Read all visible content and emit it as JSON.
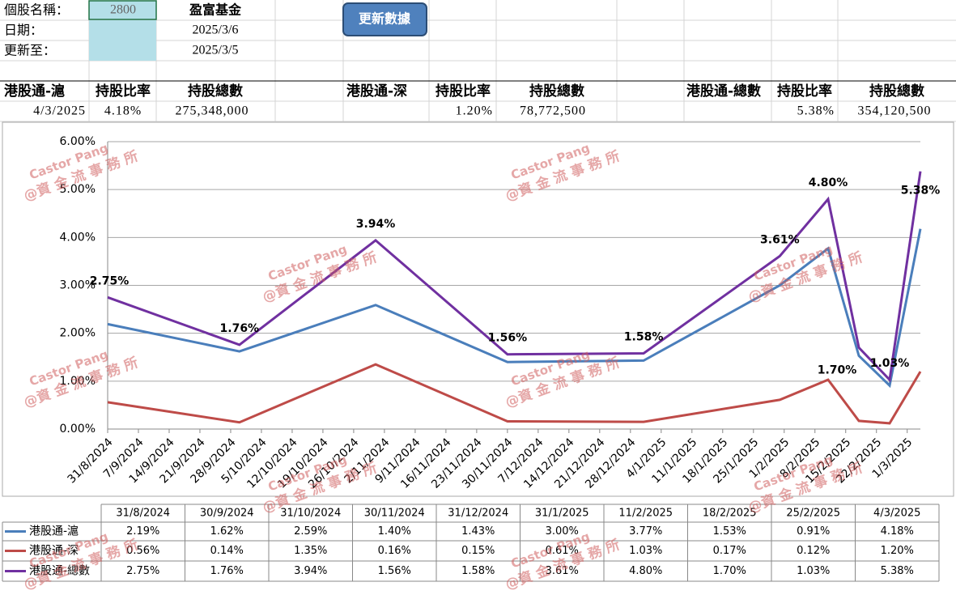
{
  "header": {
    "stock_label": "個股名稱：",
    "stock_code": "2800",
    "stock_name": "盈富基金",
    "date_label": "日期：",
    "date": "2025/3/6",
    "updated_label": "更新至：",
    "updated": "2025/3/5",
    "button": "更新數據"
  },
  "summary": {
    "headers": [
      "港股通-滬",
      "持股比率",
      "持股總數",
      "港股通-深",
      "持股比率",
      "持股總數",
      "港股通-總數",
      "持股比率",
      "持股總數"
    ],
    "values": [
      "4/3/2025",
      "4.18%",
      "275,348,000",
      "1.20%",
      "78,772,500",
      "5.38%",
      "354,120,500"
    ]
  },
  "watermark": [
    "Castor Pang",
    "@資 金 流 事 務 所"
  ],
  "chart_data": {
    "type": "line",
    "x": [
      "31/8/2024",
      "30/9/2024",
      "31/10/2024",
      "30/11/2024",
      "31/12/2024",
      "31/1/2025",
      "11/2/2025",
      "18/2/2025",
      "25/2/2025",
      "4/3/2025"
    ],
    "xlim": [
      "31/8/2024",
      "4/3/2025"
    ],
    "xticks": [
      "31/8/2024",
      "7/9/2024",
      "14/9/2024",
      "21/9/2024",
      "28/9/2024",
      "5/10/2024",
      "12/10/2024",
      "19/10/2024",
      "26/10/2024",
      "2/11/2024",
      "9/11/2024",
      "16/11/2024",
      "23/11/2024",
      "30/11/2024",
      "7/12/2024",
      "14/12/2024",
      "21/12/2024",
      "28/12/2024",
      "4/1/2025",
      "11/1/2025",
      "18/1/2025",
      "25/1/2025",
      "1/2/2025",
      "8/2/2025",
      "15/2/2025",
      "22/2/2025",
      "1/3/2025"
    ],
    "ylim": [
      0,
      6
    ],
    "yticks": [
      {
        "value": 0,
        "label": "0.00%"
      },
      {
        "value": 1,
        "label": "1.00%"
      },
      {
        "value": 2,
        "label": "2.00%"
      },
      {
        "value": 3,
        "label": "3.00%"
      },
      {
        "value": 4,
        "label": "4.00%"
      },
      {
        "value": 5,
        "label": "5.00%"
      },
      {
        "value": 6,
        "label": "6.00%"
      }
    ],
    "grid": true,
    "series": [
      {
        "name": "港股通-滬",
        "color": "#4a7ebb",
        "values": [
          2.19,
          1.62,
          2.59,
          1.4,
          1.43,
          3.0,
          3.77,
          1.53,
          0.91,
          4.18
        ],
        "value_labels": [
          "2.19%",
          "1.62%",
          "2.59%",
          "1.40%",
          "1.43%",
          "3.00%",
          "3.77%",
          "1.53%",
          "0.91%",
          "4.18%"
        ]
      },
      {
        "name": "港股通-深",
        "color": "#be4b48",
        "values": [
          0.56,
          0.14,
          1.35,
          0.16,
          0.15,
          0.61,
          1.03,
          0.17,
          0.12,
          1.2
        ],
        "value_labels": [
          "0.56%",
          "0.14%",
          "1.35%",
          "0.16%",
          "0.15%",
          "0.61%",
          "1.03%",
          "0.17%",
          "0.12%",
          "1.20%"
        ]
      },
      {
        "name": "港股通-總數",
        "color": "#7030a0",
        "values": [
          2.75,
          1.76,
          3.94,
          1.56,
          1.58,
          3.61,
          4.8,
          1.7,
          1.03,
          5.38
        ],
        "value_labels": [
          "2.75%",
          "1.76%",
          "3.94%",
          "1.56%",
          "1.58%",
          "3.61%",
          "4.80%",
          "1.70%",
          "1.03%",
          "5.38%"
        ],
        "show_labels": true
      }
    ]
  }
}
